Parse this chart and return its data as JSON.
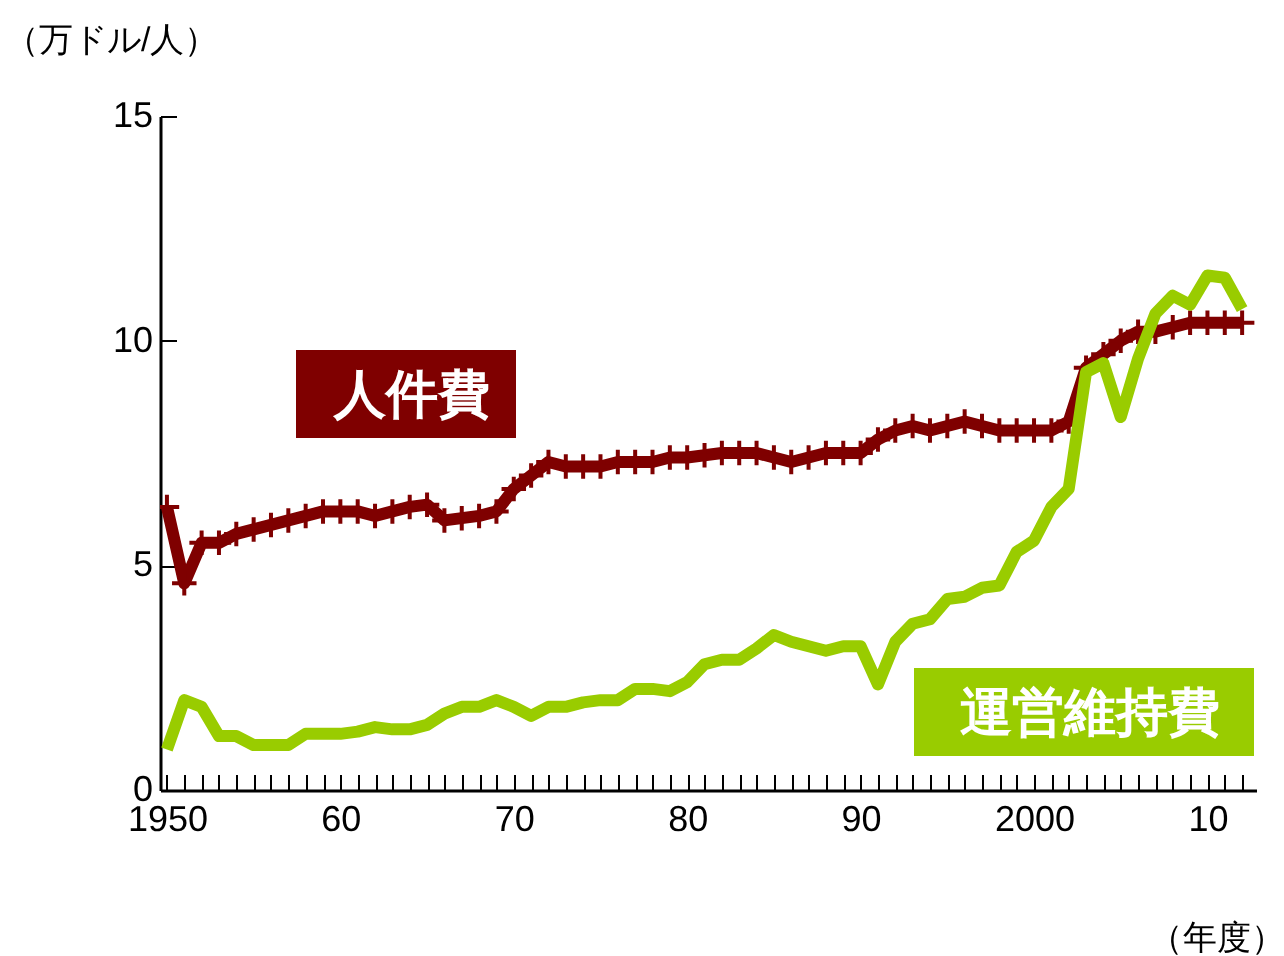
{
  "chart_data": {
    "type": "line",
    "xlabel": "（年度）",
    "ylabel": "（万ドル/人）",
    "x": [
      1950,
      1951,
      1952,
      1953,
      1954,
      1955,
      1956,
      1957,
      1958,
      1959,
      1960,
      1961,
      1962,
      1963,
      1964,
      1965,
      1966,
      1967,
      1968,
      1969,
      1970,
      1971,
      1972,
      1973,
      1974,
      1975,
      1976,
      1977,
      1978,
      1979,
      1980,
      1981,
      1982,
      1983,
      1984,
      1985,
      1986,
      1987,
      1988,
      1989,
      1990,
      1991,
      1992,
      1993,
      1994,
      1995,
      1996,
      1997,
      1998,
      1999,
      2000,
      2001,
      2002,
      2003,
      2004,
      2005,
      2006,
      2007,
      2008,
      2009,
      2010,
      2011,
      2012
    ],
    "series": [
      {
        "name": "人件費",
        "color": "#7f0000",
        "marker": "cross",
        "values": [
          6.3,
          4.6,
          5.5,
          5.5,
          5.7,
          5.8,
          5.9,
          6.0,
          6.1,
          6.2,
          6.2,
          6.2,
          6.1,
          6.2,
          6.3,
          6.35,
          6.0,
          6.05,
          6.1,
          6.2,
          6.7,
          7.0,
          7.3,
          7.2,
          7.2,
          7.2,
          7.3,
          7.3,
          7.3,
          7.4,
          7.4,
          7.45,
          7.5,
          7.5,
          7.5,
          7.4,
          7.3,
          7.4,
          7.5,
          7.5,
          7.5,
          7.8,
          8.0,
          8.1,
          8.0,
          8.1,
          8.2,
          8.1,
          8.0,
          8.0,
          8.0,
          8.0,
          8.2,
          9.4,
          9.7,
          10.0,
          10.2,
          10.2,
          10.3,
          10.4,
          10.4,
          10.4,
          10.4
        ]
      },
      {
        "name": "運営維持費",
        "color": "#99cc00",
        "marker": "none",
        "values": [
          0.9,
          2.0,
          1.85,
          1.2,
          1.2,
          1.0,
          1.0,
          1.0,
          1.25,
          1.25,
          1.25,
          1.3,
          1.4,
          1.35,
          1.35,
          1.45,
          1.7,
          1.85,
          1.85,
          2.0,
          1.85,
          1.65,
          1.85,
          1.85,
          1.95,
          2.0,
          2.0,
          2.25,
          2.25,
          2.2,
          2.4,
          2.8,
          2.9,
          2.9,
          3.15,
          3.45,
          3.3,
          3.2,
          3.1,
          3.2,
          3.2,
          2.35,
          3.3,
          3.7,
          3.8,
          4.25,
          4.3,
          4.5,
          4.55,
          5.3,
          5.55,
          6.3,
          6.7,
          9.3,
          9.5,
          8.3,
          9.6,
          10.6,
          11.0,
          10.8,
          11.45,
          11.4,
          10.7
        ]
      }
    ],
    "xlim": [
      1949.6,
      2012.8
    ],
    "xticks": [
      {
        "value": 1950,
        "label": "1950"
      },
      {
        "value": 1951,
        "label": null
      },
      {
        "value": 1952,
        "label": null
      },
      {
        "value": 1953,
        "label": null
      },
      {
        "value": 1954,
        "label": null
      },
      {
        "value": 1955,
        "label": null
      },
      {
        "value": 1956,
        "label": null
      },
      {
        "value": 1957,
        "label": null
      },
      {
        "value": 1958,
        "label": null
      },
      {
        "value": 1959,
        "label": null
      },
      {
        "value": 1960,
        "label": "60"
      },
      {
        "value": 1961,
        "label": null
      },
      {
        "value": 1962,
        "label": null
      },
      {
        "value": 1963,
        "label": null
      },
      {
        "value": 1964,
        "label": null
      },
      {
        "value": 1965,
        "label": null
      },
      {
        "value": 1966,
        "label": null
      },
      {
        "value": 1967,
        "label": null
      },
      {
        "value": 1968,
        "label": null
      },
      {
        "value": 1969,
        "label": null
      },
      {
        "value": 1970,
        "label": "70"
      },
      {
        "value": 1971,
        "label": null
      },
      {
        "value": 1972,
        "label": null
      },
      {
        "value": 1973,
        "label": null
      },
      {
        "value": 1974,
        "label": null
      },
      {
        "value": 1975,
        "label": null
      },
      {
        "value": 1976,
        "label": null
      },
      {
        "value": 1977,
        "label": null
      },
      {
        "value": 1978,
        "label": null
      },
      {
        "value": 1979,
        "label": null
      },
      {
        "value": 1980,
        "label": "80"
      },
      {
        "value": 1981,
        "label": null
      },
      {
        "value": 1982,
        "label": null
      },
      {
        "value": 1983,
        "label": null
      },
      {
        "value": 1984,
        "label": null
      },
      {
        "value": 1985,
        "label": null
      },
      {
        "value": 1986,
        "label": null
      },
      {
        "value": 1987,
        "label": null
      },
      {
        "value": 1988,
        "label": null
      },
      {
        "value": 1989,
        "label": null
      },
      {
        "value": 1990,
        "label": "90"
      },
      {
        "value": 1991,
        "label": null
      },
      {
        "value": 1992,
        "label": null
      },
      {
        "value": 1993,
        "label": null
      },
      {
        "value": 1994,
        "label": null
      },
      {
        "value": 1995,
        "label": null
      },
      {
        "value": 1996,
        "label": null
      },
      {
        "value": 1997,
        "label": null
      },
      {
        "value": 1998,
        "label": null
      },
      {
        "value": 1999,
        "label": null
      },
      {
        "value": 2000,
        "label": "2000"
      },
      {
        "value": 2001,
        "label": null
      },
      {
        "value": 2002,
        "label": null
      },
      {
        "value": 2003,
        "label": null
      },
      {
        "value": 2004,
        "label": null
      },
      {
        "value": 2005,
        "label": null
      },
      {
        "value": 2006,
        "label": null
      },
      {
        "value": 2007,
        "label": null
      },
      {
        "value": 2008,
        "label": null
      },
      {
        "value": 2009,
        "label": null
      },
      {
        "value": 2010,
        "label": "10"
      },
      {
        "value": 2011,
        "label": null
      },
      {
        "value": 2012,
        "label": null
      }
    ],
    "ylim": [
      0,
      15
    ],
    "yticks": [
      0,
      5,
      10,
      15
    ],
    "grid": false,
    "line_style": "solid"
  }
}
